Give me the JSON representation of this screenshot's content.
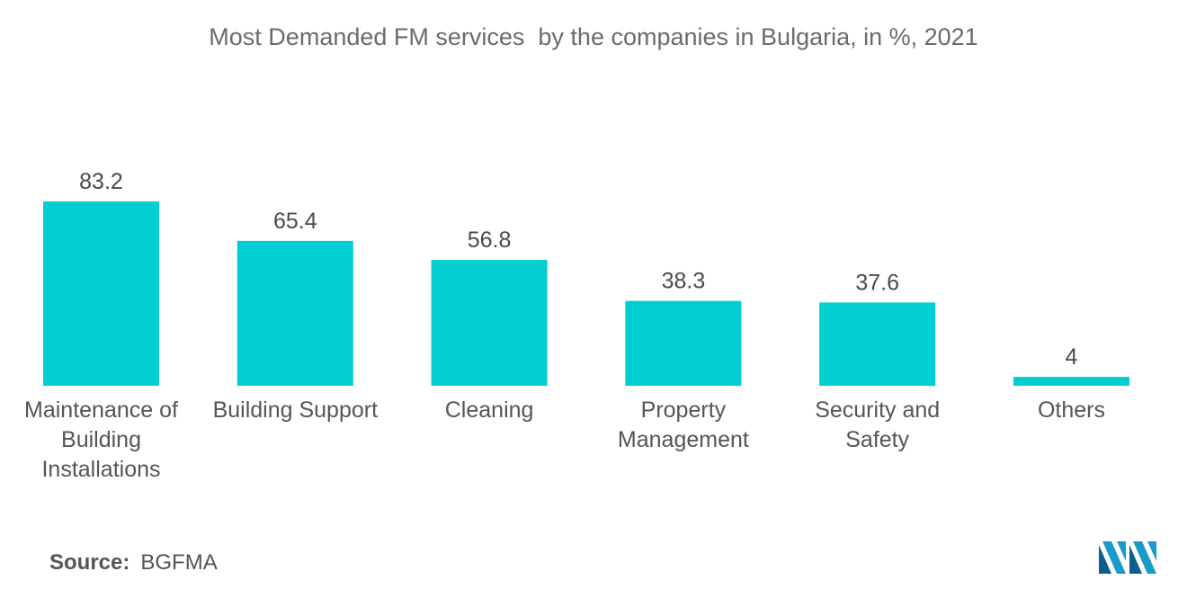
{
  "chart_data": {
    "type": "bar",
    "title": "Most Demanded FM services  by the companies in Bulgaria, in %, 2021",
    "categories": [
      [
        "Maintenance of",
        "Building",
        "Installations"
      ],
      [
        "Building Support"
      ],
      [
        "Cleaning"
      ],
      [
        "Property",
        "Management"
      ],
      [
        "Security and",
        "Safety"
      ],
      [
        "Others"
      ]
    ],
    "values": [
      83.2,
      65.4,
      56.8,
      38.3,
      37.6,
      4
    ],
    "value_labels": [
      "83.2",
      "65.4",
      "56.8",
      "38.3",
      "37.6",
      "4"
    ],
    "xlabel": "",
    "ylabel": "",
    "grid": false,
    "legend": "none",
    "bar_color": "#00CED1"
  },
  "source": {
    "label": "Source:",
    "value": "BGFMA"
  },
  "logo": {
    "icon": "mordor-intelligence-logo-icon",
    "colors": [
      "#1A9BC7",
      "#0C5E8C"
    ]
  }
}
